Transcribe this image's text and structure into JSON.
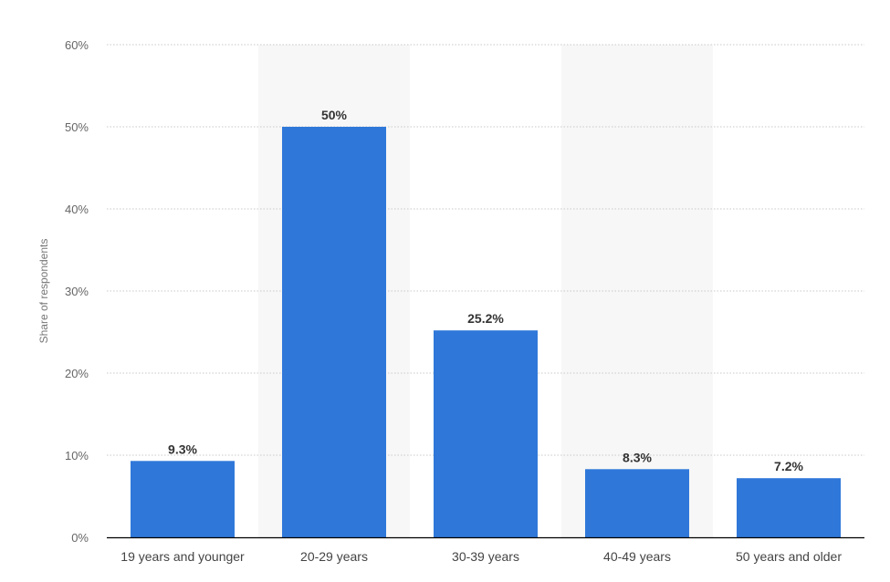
{
  "chart_data": {
    "type": "bar",
    "title": "",
    "xlabel": "",
    "ylabel": "Share of respondents",
    "categories": [
      "19 years and younger",
      "20-29 years",
      "30-39 years",
      "40-49 years",
      "50 years and older"
    ],
    "values": [
      9.3,
      50,
      25.2,
      8.3,
      7.2
    ],
    "value_labels": [
      "9.3%",
      "50%",
      "25.2%",
      "8.3%",
      "7.2%"
    ],
    "ylim": [
      0,
      60
    ],
    "yticks": [
      0,
      10,
      20,
      30,
      40,
      50,
      60
    ],
    "ytick_labels": [
      "0%",
      "10%",
      "20%",
      "30%",
      "40%",
      "50%",
      "60%"
    ],
    "grid": true,
    "legend": "none",
    "colors": {
      "bar": "#2f78d9",
      "grid": "#c8c8c8",
      "band": "#f7f7f7",
      "axis": "#000000"
    }
  }
}
